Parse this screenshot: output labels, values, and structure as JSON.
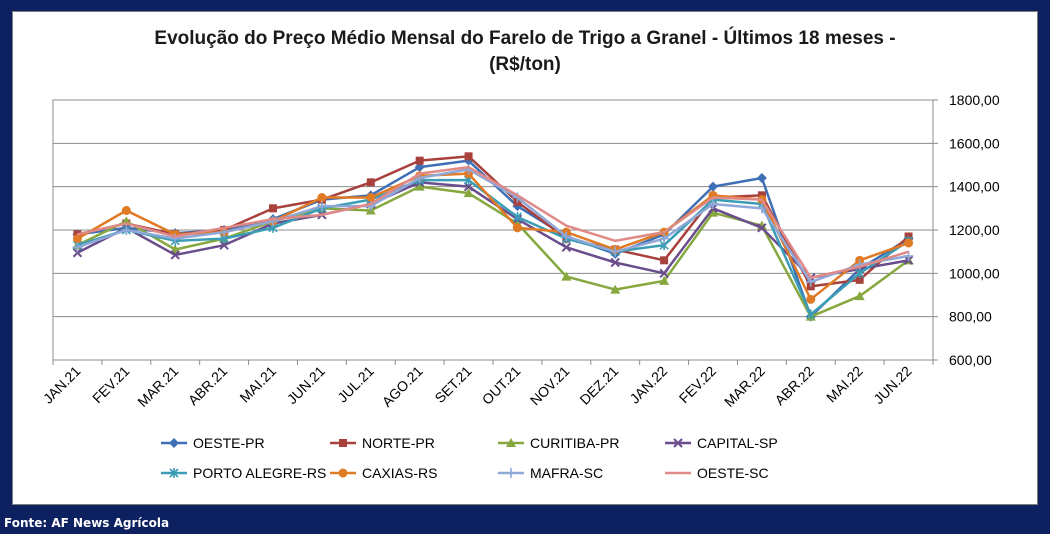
{
  "source_note": "Fonte: AF News Agrícola",
  "chart_data": {
    "type": "line",
    "title_line1": "Evolução do Preço Médio Mensal do Farelo de Trigo a Granel - Últimos 18 meses -",
    "title_line2": "(R$/ton)",
    "categories": [
      "JAN.21",
      "FEV.21",
      "MAR.21",
      "ABR.21",
      "MAI.21",
      "JUN.21",
      "JUL.21",
      "AGO.21",
      "SET.21",
      "OUT.21",
      "NOV.21",
      "DEZ.21",
      "JAN.22",
      "FEV.22",
      "MAR.22",
      "ABR.22",
      "MAI.22",
      "JUN.22"
    ],
    "y_ticks": [
      "600,00",
      "800,00",
      "1000,00",
      "1200,00",
      "1400,00",
      "1600,00",
      "1800,00"
    ],
    "ylim": [
      600,
      1800
    ],
    "y_axis_side": "right",
    "grid": true,
    "legend_position": "bottom",
    "series": [
      {
        "name": "OESTE-PR",
        "color": "#3f6fb5",
        "marker": "diamond",
        "values": [
          1180,
          1210,
          1185,
          1200,
          1250,
          1340,
          1360,
          1490,
          1520,
          1310,
          1170,
          1090,
          1180,
          1400,
          1440,
          800,
          1020,
          1160
        ]
      },
      {
        "name": "NORTE-PR",
        "color": "#a8403c",
        "marker": "square",
        "values": [
          1180,
          1230,
          1180,
          1200,
          1300,
          1340,
          1420,
          1520,
          1540,
          1330,
          1160,
          1110,
          1060,
          1350,
          1360,
          940,
          970,
          1170
        ]
      },
      {
        "name": "CURITIBA-PR",
        "color": "#86a83f",
        "marker": "triangle",
        "values": [
          1130,
          1240,
          1110,
          1160,
          1240,
          1300,
          1290,
          1400,
          1370,
          1230,
          985,
          925,
          965,
          1280,
          1220,
          800,
          895,
          1060
        ]
      },
      {
        "name": "CAPITAL-SP",
        "color": "#6a4d8c",
        "marker": "x",
        "values": [
          1095,
          1210,
          1085,
          1130,
          1230,
          1270,
          1320,
          1420,
          1400,
          1250,
          1120,
          1050,
          1000,
          1300,
          1210,
          980,
          1020,
          1060
        ]
      },
      {
        "name": "PORTO ALEGRE-RS",
        "color": "#3a9db5",
        "marker": "asterisk",
        "values": [
          1130,
          1200,
          1150,
          1160,
          1210,
          1300,
          1340,
          1430,
          1430,
          1260,
          1160,
          1100,
          1130,
          1340,
          1320,
          810,
          1000,
          1150
        ]
      },
      {
        "name": "CAXIAS-RS",
        "color": "#e07a24",
        "marker": "circle",
        "values": [
          1160,
          1290,
          1180,
          1190,
          1240,
          1350,
          1350,
          1450,
          1460,
          1210,
          1190,
          1110,
          1190,
          1360,
          1340,
          880,
          1060,
          1140
        ]
      },
      {
        "name": "MAFRA-SC",
        "color": "#8fa8d8",
        "marker": "plus",
        "values": [
          1120,
          1200,
          1160,
          1190,
          1240,
          1310,
          1310,
          1440,
          1480,
          1350,
          1170,
          1100,
          1160,
          1320,
          1300,
          960,
          1040,
          1080
        ]
      },
      {
        "name": "OESTE-SC",
        "color": "#e08a88",
        "marker": "none",
        "values": [
          1180,
          1230,
          1170,
          1210,
          1250,
          1270,
          1320,
          1460,
          1490,
          1360,
          1220,
          1150,
          1190,
          1350,
          1340,
          980,
          1030,
          1100
        ]
      }
    ]
  }
}
